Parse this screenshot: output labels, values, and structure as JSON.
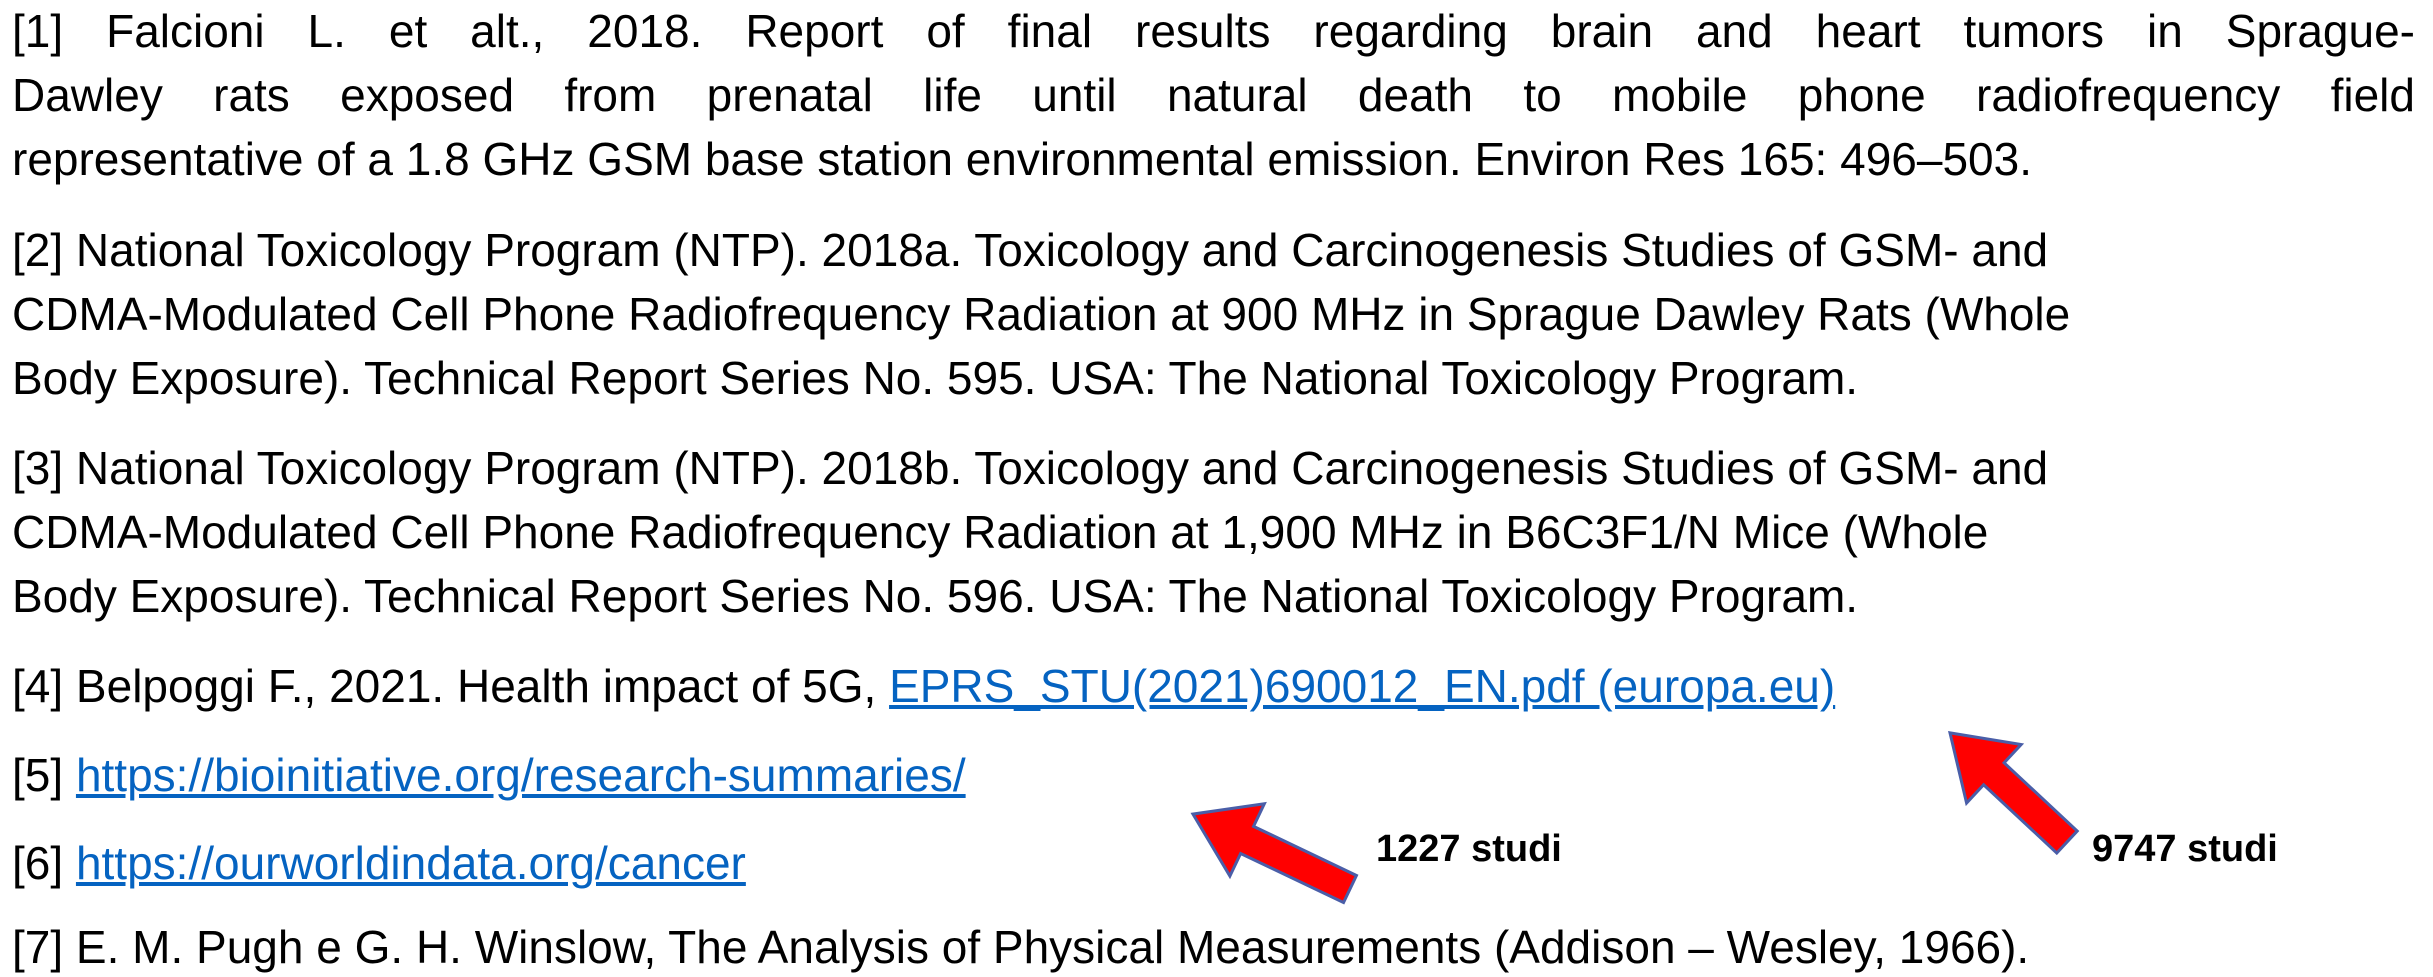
{
  "references": [
    {
      "lines": [
        "[1] Falcioni L. et alt., 2018. Report of final results regarding brain and heart tumors in Sprague-",
        "Dawley rats exposed from prenatal life until natural death to mobile phone radiofrequency field",
        "representative of a 1.8 GHz GSM base station environmental emission. Environ Res 165: 496–503."
      ]
    },
    {
      "lines": [
        "[2] National Toxicology Program (NTP). 2018a. Toxicology and Carcinogenesis Studies of GSM- and",
        "CDMA-Modulated Cell Phone Radiofrequency Radiation at 900 MHz in Sprague Dawley Rats (Whole",
        "Body Exposure). Technical Report Series No. 595. USA: The National Toxicology Program."
      ]
    },
    {
      "lines": [
        "[3] National Toxicology Program (NTP). 2018b. Toxicology and Carcinogenesis Studies of GSM- and",
        "CDMA-Modulated Cell Phone Radiofrequency Radiation at 1,900 MHz in B6C3F1/N Mice (Whole",
        "Body Exposure). Technical Report Series No. 596. USA: The National Toxicology Program."
      ]
    },
    {
      "text": "[4] Belpoggi F., 2021. Health impact of 5G,",
      "link": "EPRS_STU(2021)690012_EN.pdf (europa.eu)"
    },
    {
      "text": "[5]",
      "link": "https://bioinitiative.org/research-summaries/"
    },
    {
      "text": "[6]",
      "link": "https://ourworldindata.org/cancer"
    },
    {
      "text": "[7] E. M. Pugh e G. H. Winslow, The Analysis of Physical Measurements (Addison – Wesley, 1966)."
    }
  ],
  "annotations": [
    "1227 studi",
    "9747 studi"
  ]
}
